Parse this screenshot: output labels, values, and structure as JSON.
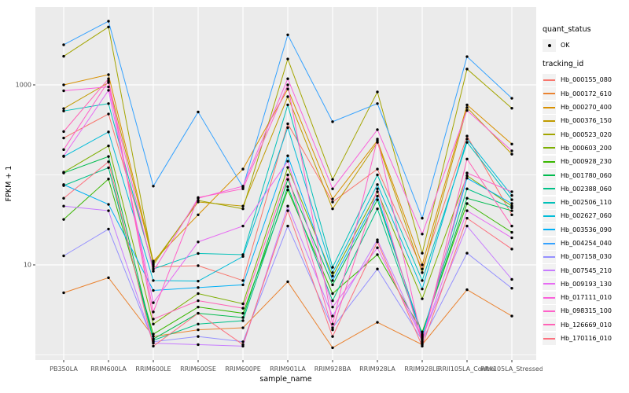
{
  "figure": {
    "background": "#FFFFFF",
    "panel_background": "#EBEBEB",
    "grid_color": "#FFFFFF",
    "tick_text_color": "#4D4D4D",
    "axis_title_color": "#000000",
    "point_color": "#000000",
    "legend_key_background": "#F2F2F2"
  },
  "legend": {
    "quant_status_title": "quant_status",
    "quant_status_value": "OK",
    "tracking_id_title": "tracking_id"
  },
  "chart_data": {
    "type": "line",
    "title": "",
    "xlabel": "sample_name",
    "ylabel": "FPKM + 1",
    "y_scale": "log10",
    "ylim": [
      0.9,
      7000
    ],
    "grid": true,
    "legend_position": "right",
    "y_axis_ticks": [
      {
        "label": "1000",
        "value": 1000
      },
      {
        "label": "10",
        "value": 10
      }
    ],
    "y_gridlines_major": [
      1000,
      10
    ],
    "y_gridlines_minor": [
      100,
      1
    ],
    "categories": [
      "PB350LA",
      "RRIM600LA",
      "RRIM600LE",
      "RRIM600SE",
      "RRIM600PE",
      "RRIM901LA",
      "RRIM928BA",
      "RRIM928LA",
      "RRIM928LE",
      "RRII105LA_Control",
      "RRII105LA_Stressed"
    ],
    "series": [
      {
        "name": "Hb_000155_080",
        "color": "#F8766D",
        "quant_status": "OK",
        "values": [
          257,
          475,
          9.5,
          9.8,
          6.7,
          370,
          50,
          116,
          9,
          270,
          36
        ]
      },
      {
        "name": "Hb_000172_610",
        "color": "#EA8331",
        "quant_status": "OK",
        "values": [
          4.9,
          7.2,
          1.6,
          1.9,
          2.0,
          6.5,
          1.2,
          2.3,
          1.3,
          5.3,
          2.7
        ]
      },
      {
        "name": "Hb_000270_400",
        "color": "#D89000",
        "quant_status": "OK",
        "values": [
          1000,
          1300,
          11,
          36,
          116,
          900,
          54,
          240,
          10,
          600,
          220
        ]
      },
      {
        "name": "Hb_000376_150",
        "color": "#C09B00",
        "quant_status": "OK",
        "values": [
          545,
          1060,
          10.5,
          50,
          45,
          740,
          42,
          230,
          8.2,
          560,
          170
        ]
      },
      {
        "name": "Hb_000523_020",
        "color": "#A3A500",
        "quant_status": "OK",
        "values": [
          2080,
          4400,
          10,
          52,
          42,
          1940,
          89,
          835,
          13.5,
          1500,
          550
        ]
      },
      {
        "name": "Hb_000603_200",
        "color": "#7CAE00",
        "quant_status": "OK",
        "values": [
          107,
          210,
          2.2,
          4.8,
          3.7,
          121,
          7.5,
          65,
          4.2,
          98,
          45
        ]
      },
      {
        "name": "Hb_000928_230",
        "color": "#39B600",
        "quant_status": "OK",
        "values": [
          32,
          90,
          1.7,
          3.4,
          2.9,
          68,
          4.8,
          13,
          1.8,
          48,
          23
        ]
      },
      {
        "name": "Hb_001780_060",
        "color": "#00BB4E",
        "quant_status": "OK",
        "values": [
          105,
          160,
          1.5,
          2.9,
          2.6,
          89,
          6.0,
          53,
          1.7,
          55,
          40
        ]
      },
      {
        "name": "Hb_002388_060",
        "color": "#00C087",
        "quant_status": "OK",
        "values": [
          76,
          120,
          1.45,
          2.2,
          2.4,
          74,
          4.0,
          42,
          1.65,
          70,
          43
        ]
      },
      {
        "name": "Hb_002506_110",
        "color": "#00C0B8",
        "quant_status": "OK",
        "values": [
          513,
          620,
          9,
          13.4,
          13,
          600,
          9.4,
          100,
          6.7,
          230,
          53
        ]
      },
      {
        "name": "Hb_002627_060",
        "color": "#00BCD8",
        "quant_status": "OK",
        "values": [
          160,
          300,
          6.7,
          6.6,
          12.4,
          335,
          8.2,
          78,
          5.4,
          250,
          59
        ]
      },
      {
        "name": "Hb_003536_090",
        "color": "#00B0F6",
        "quant_status": "OK",
        "values": [
          78,
          47,
          5.2,
          5.6,
          6.0,
          163,
          6.7,
          58,
          1.6,
          92,
          48
        ]
      },
      {
        "name": "Hb_004254_040",
        "color": "#35A2FF",
        "quant_status": "OK",
        "values": [
          2790,
          5100,
          75,
          500,
          73,
          3600,
          390,
          620,
          33,
          2060,
          710
        ]
      },
      {
        "name": "Hb_007158_030",
        "color": "#9590FF",
        "quant_status": "OK",
        "values": [
          12.6,
          25,
          1.4,
          1.6,
          1.4,
          27,
          2.0,
          9.0,
          1.45,
          13.5,
          5.5
        ]
      },
      {
        "name": "Hb_007545_210",
        "color": "#C77CFF",
        "quant_status": "OK",
        "values": [
          45,
          40,
          1.35,
          1.3,
          1.25,
          45,
          2.7,
          19,
          1.55,
          27,
          6.9
        ]
      },
      {
        "name": "Hb_009193_130",
        "color": "#E76BF3",
        "quant_status": "OK",
        "values": [
          162,
          870,
          3.8,
          18,
          27,
          142,
          3.4,
          15.5,
          1.5,
          40,
          20
        ]
      },
      {
        "name": "Hb_017111_010",
        "color": "#FA62DB",
        "quant_status": "OK",
        "values": [
          860,
          950,
          8.5,
          55,
          75,
          1170,
          70,
          318,
          22,
          520,
          185
        ]
      },
      {
        "name": "Hb_098315_100",
        "color": "#FF61C9",
        "quant_status": "OK",
        "values": [
          191,
          1100,
          3.0,
          56,
          70,
          1000,
          2.2,
          250,
          1.4,
          105,
          65
        ]
      },
      {
        "name": "Hb_126669_010",
        "color": "#FF63B6",
        "quant_status": "OK",
        "values": [
          303,
          1170,
          2.5,
          4.0,
          3.3,
          100,
          1.9,
          70,
          1.35,
          150,
          27
        ]
      },
      {
        "name": "Hb_170116_010",
        "color": "#FC717F",
        "quant_status": "OK",
        "values": [
          55,
          140,
          1.25,
          2.9,
          1.3,
          40,
          1.6,
          18,
          1.25,
          33,
          15
        ]
      }
    ]
  }
}
